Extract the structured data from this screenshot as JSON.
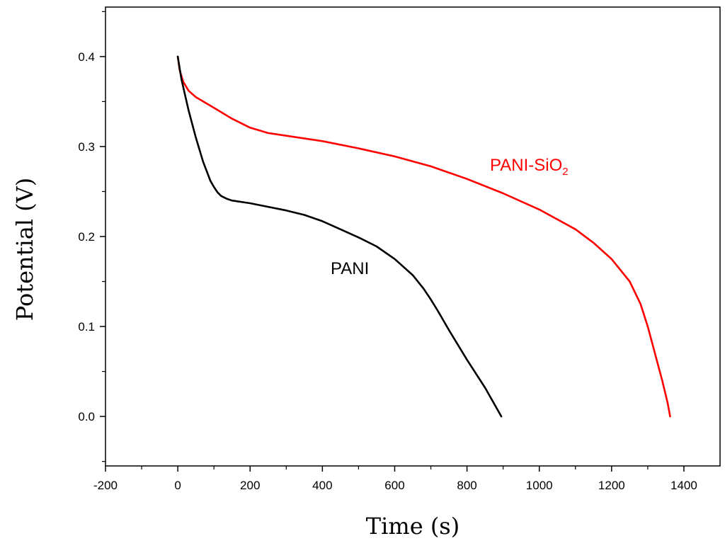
{
  "chart_data": {
    "type": "line",
    "title": "",
    "xlabel": "Time (s)",
    "ylabel": "Potential (V)",
    "xlim": [
      -200,
      1500
    ],
    "ylim": [
      -0.055,
      0.455
    ],
    "xticks": [
      -200,
      0,
      200,
      400,
      600,
      800,
      1000,
      1200,
      1400
    ],
    "yticks": [
      0.0,
      0.1,
      0.2,
      0.3,
      0.4
    ],
    "xtick_labels": [
      "-200",
      "0",
      "200",
      "400",
      "600",
      "800",
      "1000",
      "1200",
      "1400"
    ],
    "ytick_labels": [
      "0.0",
      "0.1",
      "0.2",
      "0.3",
      "0.4"
    ],
    "grid": false,
    "series": [
      {
        "name": "PANI-SiO2",
        "label_main": "PANI-SiO",
        "label_sub": "2",
        "color": "#ff0000",
        "x": [
          0,
          5,
          15,
          30,
          50,
          100,
          150,
          200,
          250,
          300,
          400,
          500,
          600,
          700,
          800,
          900,
          1000,
          1100,
          1150,
          1200,
          1250,
          1280,
          1300,
          1320,
          1340,
          1355,
          1362
        ],
        "y": [
          0.4,
          0.385,
          0.372,
          0.362,
          0.355,
          0.343,
          0.331,
          0.321,
          0.315,
          0.312,
          0.306,
          0.298,
          0.289,
          0.278,
          0.264,
          0.248,
          0.23,
          0.208,
          0.193,
          0.175,
          0.15,
          0.125,
          0.1,
          0.07,
          0.04,
          0.015,
          0.0
        ]
      },
      {
        "name": "PANI",
        "label_main": "PANI",
        "label_sub": "",
        "color": "#000000",
        "x": [
          0,
          10,
          30,
          50,
          70,
          90,
          100,
          110,
          120,
          135,
          150,
          200,
          250,
          300,
          350,
          400,
          450,
          500,
          550,
          600,
          650,
          680,
          700,
          720,
          750,
          800,
          850,
          895
        ],
        "y": [
          0.4,
          0.375,
          0.34,
          0.31,
          0.283,
          0.262,
          0.255,
          0.249,
          0.245,
          0.242,
          0.24,
          0.237,
          0.233,
          0.229,
          0.224,
          0.217,
          0.208,
          0.199,
          0.189,
          0.175,
          0.157,
          0.142,
          0.13,
          0.117,
          0.096,
          0.063,
          0.032,
          0.0
        ]
      }
    ],
    "annotations": [
      {
        "text": "PANI-SiO",
        "sub": "2",
        "series": "PANI-SiO2",
        "x": 870,
        "y": 0.263
      },
      {
        "text": "PANI",
        "series": "PANI",
        "x": 500,
        "y": 0.16
      }
    ]
  }
}
